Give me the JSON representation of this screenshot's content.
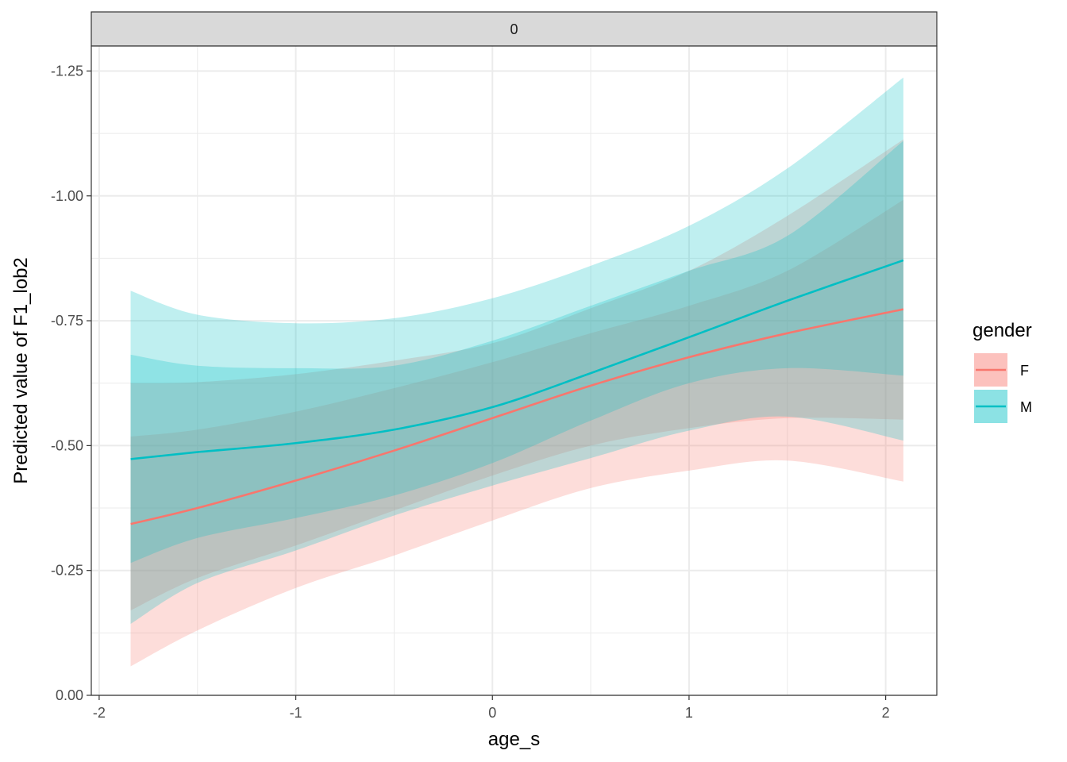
{
  "chart_data": {
    "type": "line",
    "facet_label": "0",
    "xlabel": "age_s",
    "ylabel": "Predicted value of F1_lob2",
    "xlim": [
      -2.04,
      2.26
    ],
    "ylim": [
      0.0,
      -1.3
    ],
    "y_reversed": true,
    "x_ticks": [
      -2,
      -1,
      0,
      1,
      2
    ],
    "x_tick_labels": [
      "-2",
      "-1",
      "0",
      "1",
      "2"
    ],
    "y_ticks": [
      0.0,
      -0.25,
      -0.5,
      -0.75,
      -1.0,
      -1.25
    ],
    "y_tick_labels": [
      "0.00",
      "-0.25",
      "-0.50",
      "-0.75",
      "-1.00",
      "-1.25"
    ],
    "grid": true,
    "legend": {
      "title": "gender",
      "position": "right"
    },
    "x": [
      -1.84,
      -1.5,
      -1.0,
      -0.5,
      0.0,
      0.5,
      1.0,
      1.5,
      2.09
    ],
    "series": [
      {
        "name": "F",
        "color": "#F8766D",
        "values": [
          -0.343,
          -0.375,
          -0.43,
          -0.49,
          -0.555,
          -0.62,
          -0.677,
          -0.725,
          -0.773
        ],
        "outer_lower": [
          -0.058,
          -0.13,
          -0.215,
          -0.28,
          -0.35,
          -0.415,
          -0.45,
          -0.47,
          -0.428
        ],
        "outer_upper": [
          -0.625,
          -0.627,
          -0.643,
          -0.67,
          -0.705,
          -0.775,
          -0.85,
          -0.96,
          -1.113
        ],
        "inner_lower": [
          -0.17,
          -0.235,
          -0.3,
          -0.37,
          -0.44,
          -0.5,
          -0.535,
          -0.555,
          -0.552
        ],
        "inner_upper": [
          -0.518,
          -0.532,
          -0.568,
          -0.615,
          -0.667,
          -0.725,
          -0.78,
          -0.85,
          -0.992
        ]
      },
      {
        "name": "M",
        "color": "#00BFC4",
        "values": [
          -0.473,
          -0.487,
          -0.505,
          -0.532,
          -0.577,
          -0.645,
          -0.717,
          -0.79,
          -0.871
        ],
        "outer_lower": [
          -0.143,
          -0.225,
          -0.29,
          -0.36,
          -0.42,
          -0.475,
          -0.53,
          -0.558,
          -0.51
        ],
        "outer_upper": [
          -0.81,
          -0.762,
          -0.745,
          -0.755,
          -0.795,
          -0.86,
          -0.94,
          -1.055,
          -1.237
        ],
        "inner_lower": [
          -0.265,
          -0.315,
          -0.355,
          -0.4,
          -0.465,
          -0.55,
          -0.625,
          -0.655,
          -0.64
        ],
        "inner_upper": [
          -0.682,
          -0.66,
          -0.655,
          -0.66,
          -0.71,
          -0.78,
          -0.85,
          -0.92,
          -1.11
        ]
      }
    ]
  }
}
